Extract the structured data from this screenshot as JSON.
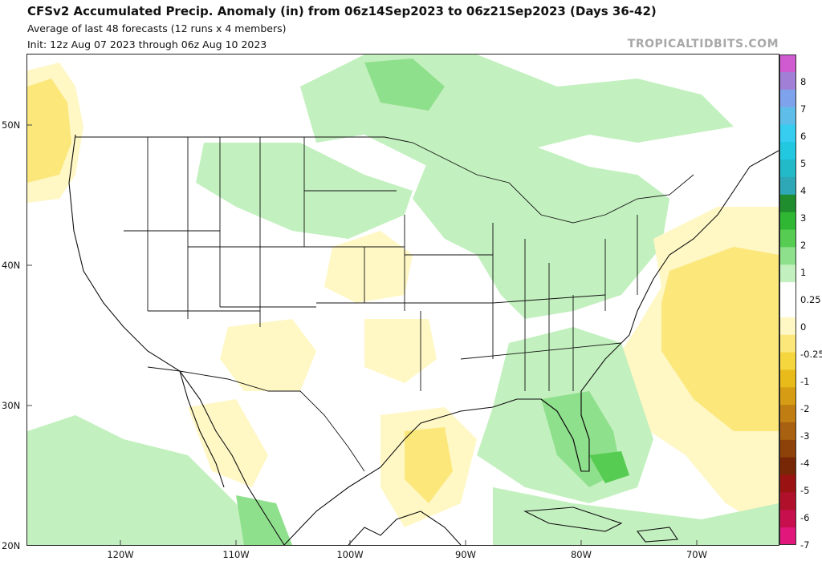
{
  "header": {
    "title": "CFSv2 Accumulated Precip. Anomaly (in) from 06z14Sep2023 to 06z21Sep2023 (Days 36-42)",
    "subtitle1": "Average of last 48 forecasts (12 runs x 4 members)",
    "subtitle2": "Init: 12z Aug 07 2023 through 06z Aug 10 2023",
    "credit": "TROPICALTIDBITS.COM"
  },
  "map": {
    "lat_labels": [
      "50N",
      "40N",
      "30N",
      "20N"
    ],
    "lon_labels": [
      "120W",
      "110W",
      "100W",
      "90W",
      "80W",
      "70W"
    ],
    "projection": "lat-lon",
    "region": "Contiguous United States"
  },
  "colorbar": {
    "labels": [
      "8",
      "7",
      "6",
      "5",
      "4",
      "3",
      "2",
      "1",
      "0.25",
      "0",
      "-0.25",
      "-1",
      "-2",
      "-3",
      "-4",
      "-5",
      "-6",
      "-7"
    ],
    "colors": [
      "#d05ad0",
      "#a27fd6",
      "#7fa2ec",
      "#5fbde9",
      "#36cdf0",
      "#22c7e0",
      "#22b9c9",
      "#2ea7b6",
      "#1f8c2d",
      "#2fb734",
      "#57cc52",
      "#8fe08c",
      "#c3f0bf",
      "#ffffff",
      "#ffffff",
      "#fff7c4",
      "#fbe77a",
      "#f5d63e",
      "#e8bb1a",
      "#d69d14",
      "#bf7d12",
      "#a86110",
      "#8d4209",
      "#772706",
      "#9b1212",
      "#b0102a",
      "#c80f4d",
      "#e2177b"
    ],
    "shading": {
      "wet_light": "#c3f0bf",
      "wet_medium": "#8fe08c",
      "wet_strong": "#57cc52",
      "dry_light": "#fff7c4",
      "dry_medium": "#fbe77a",
      "dry_strong": "#f5d63e"
    }
  }
}
